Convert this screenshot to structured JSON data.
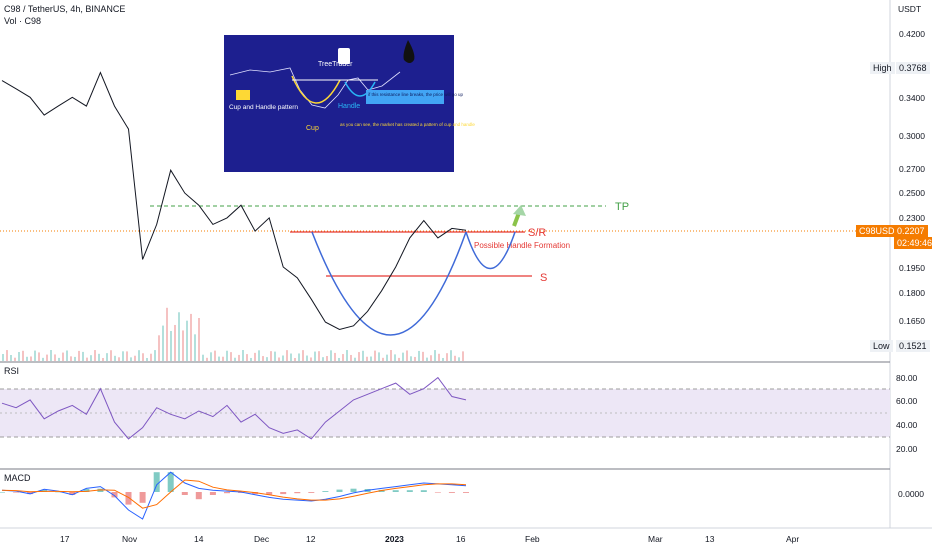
{
  "header": {
    "symbol_line": "C98 / TetherUS, 4h, BINANCE",
    "volume_line": "Vol · C98",
    "currency": "USDT"
  },
  "price_axis": {
    "ticks": [
      "0.4200",
      "0.3400",
      "0.3000",
      "0.2700",
      "0.2500",
      "0.2300",
      "0.1950",
      "0.1800",
      "0.1650"
    ],
    "high_label": "High",
    "high_value": "0.3768",
    "low_label": "Low",
    "low_value": "0.1521",
    "last_symbol": "C98USDT",
    "last_value": "0.2207",
    "countdown": "02:49:46"
  },
  "rsi": {
    "label": "RSI",
    "ticks": [
      "80.00",
      "60.00",
      "40.00",
      "20.00"
    ]
  },
  "macd": {
    "label": "MACD",
    "ticks": [
      "0.0000"
    ]
  },
  "time_axis": {
    "labels": [
      "17",
      "Nov",
      "14",
      "Dec",
      "12",
      "2023",
      "16",
      "Feb",
      "Mar",
      "13",
      "Apr"
    ]
  },
  "annotations": {
    "tp": "TP",
    "sr": "S/R",
    "s": "S",
    "handle_note": "Possible Handle Formation"
  },
  "inset": {
    "brand": "TreeTrader",
    "pattern_label": "Cup and Handle pattern",
    "cup_label": "Cup",
    "handle_label": "Handle",
    "note_break": "if this resistance line breaks, the price will go up",
    "note_cup": "as you can see, the market has created a pattern of cup and handle"
  },
  "colors": {
    "price": "#131722",
    "sr_line": "#e53935",
    "tp_line": "#43a047",
    "cup": "#3f6ad8",
    "rsi_line": "#7e57c2",
    "rsi_band": "#ede7f6",
    "last_price": "#f57c00",
    "macd_line": "#2962ff",
    "signal_line": "#ff6d00",
    "inset_bg": "#1d1f8f"
  },
  "chart_data": [
    {
      "type": "line",
      "pane": "price",
      "y_scale": "log",
      "x": [
        "Oct 06",
        "Oct 10",
        "Oct 14",
        "Oct 17",
        "Oct 21",
        "Oct 25",
        "Oct 28",
        "Nov 01",
        "Nov 04",
        "Nov 07",
        "Nov 09",
        "Nov 11",
        "Nov 14",
        "Nov 18",
        "Nov 22",
        "Nov 26",
        "Dec 01",
        "Dec 05",
        "Dec 09",
        "Dec 12",
        "Dec 16",
        "Dec 20",
        "Dec 23",
        "Dec 27",
        "Dec 30",
        "Jan 02",
        "Jan 05",
        "Jan 08",
        "Jan 11",
        "Jan 13",
        "Jan 15",
        "Jan 16",
        "Jan 17",
        "Jan 18"
      ],
      "values": [
        0.365,
        0.355,
        0.345,
        0.325,
        0.335,
        0.345,
        0.335,
        0.375,
        0.335,
        0.31,
        0.2,
        0.225,
        0.27,
        0.25,
        0.24,
        0.225,
        0.23,
        0.24,
        0.22,
        0.23,
        0.195,
        0.188,
        0.175,
        0.162,
        0.158,
        0.16,
        0.168,
        0.18,
        0.195,
        0.215,
        0.228,
        0.215,
        0.222,
        0.2207
      ],
      "high": 0.3768,
      "low": 0.1521,
      "last": 0.2207,
      "levels": {
        "TP": 0.238,
        "S/R": 0.2207,
        "S": 0.19
      }
    },
    {
      "type": "line",
      "pane": "rsi",
      "ylim": [
        20,
        90
      ],
      "values": [
        62,
        58,
        65,
        48,
        55,
        60,
        52,
        75,
        45,
        30,
        40,
        58,
        52,
        48,
        55,
        50,
        60,
        45,
        52,
        40,
        35,
        38,
        30,
        45,
        55,
        65,
        70,
        75,
        80,
        70,
        75,
        85,
        68,
        65
      ],
      "levels": [
        70,
        50,
        30
      ]
    },
    {
      "type": "line",
      "pane": "macd",
      "values": [
        0.002,
        0.001,
        -0.002,
        0.003,
        0.001,
        -0.003,
        0.004,
        0.006,
        -0.004,
        -0.02,
        -0.03,
        0.008,
        0.022,
        0.01,
        0.004,
        0.002,
        0.001,
        0.0,
        -0.003,
        -0.006,
        -0.008,
        -0.009,
        -0.01,
        -0.008,
        -0.005,
        -0.001,
        0.002,
        0.004,
        0.006,
        0.008,
        0.01,
        0.009,
        0.008,
        0.007
      ],
      "zero": 0.0
    }
  ]
}
